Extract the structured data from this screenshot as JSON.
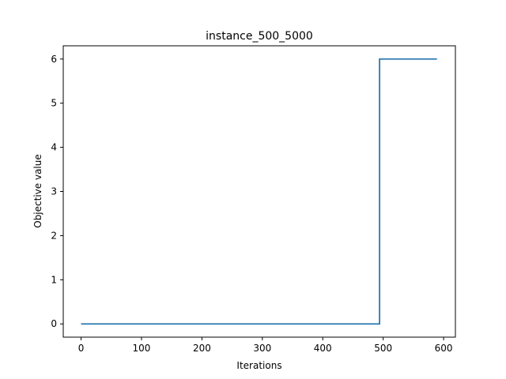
{
  "chart_data": {
    "type": "line",
    "title": "instance_500_5000",
    "xlabel": "Iterations",
    "ylabel": "Objective value",
    "xlim": [
      -29.5,
      619.5
    ],
    "ylim": [
      -0.3,
      6.3
    ],
    "xticks": [
      0,
      100,
      200,
      300,
      400,
      500,
      600
    ],
    "yticks": [
      0,
      1,
      2,
      3,
      4,
      5,
      6
    ],
    "grid": false,
    "series": [
      {
        "color": "#2a7ab0",
        "step": "post",
        "x": [
          0,
          494,
          494,
          589
        ],
        "y": [
          0,
          0,
          6,
          6
        ]
      }
    ]
  }
}
